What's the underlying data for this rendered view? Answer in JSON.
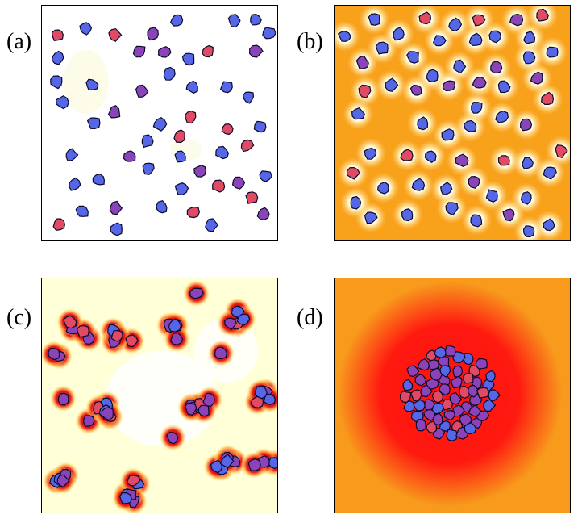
{
  "labels": {
    "a": "(a)",
    "b": "(b)",
    "c": "(c)",
    "d": "(d)"
  },
  "colors": {
    "cell_blue": "#5567e6",
    "cell_violet": "#8a44b8",
    "cell_red": "#e04a63",
    "cell_outline": "#0a0a2e",
    "panel_b_background": "#f8a21c",
    "panel_c_background": "#ffffd8",
    "panel_d_background": "#f89a1c",
    "panel_d_core": "#ff1010"
  }
}
